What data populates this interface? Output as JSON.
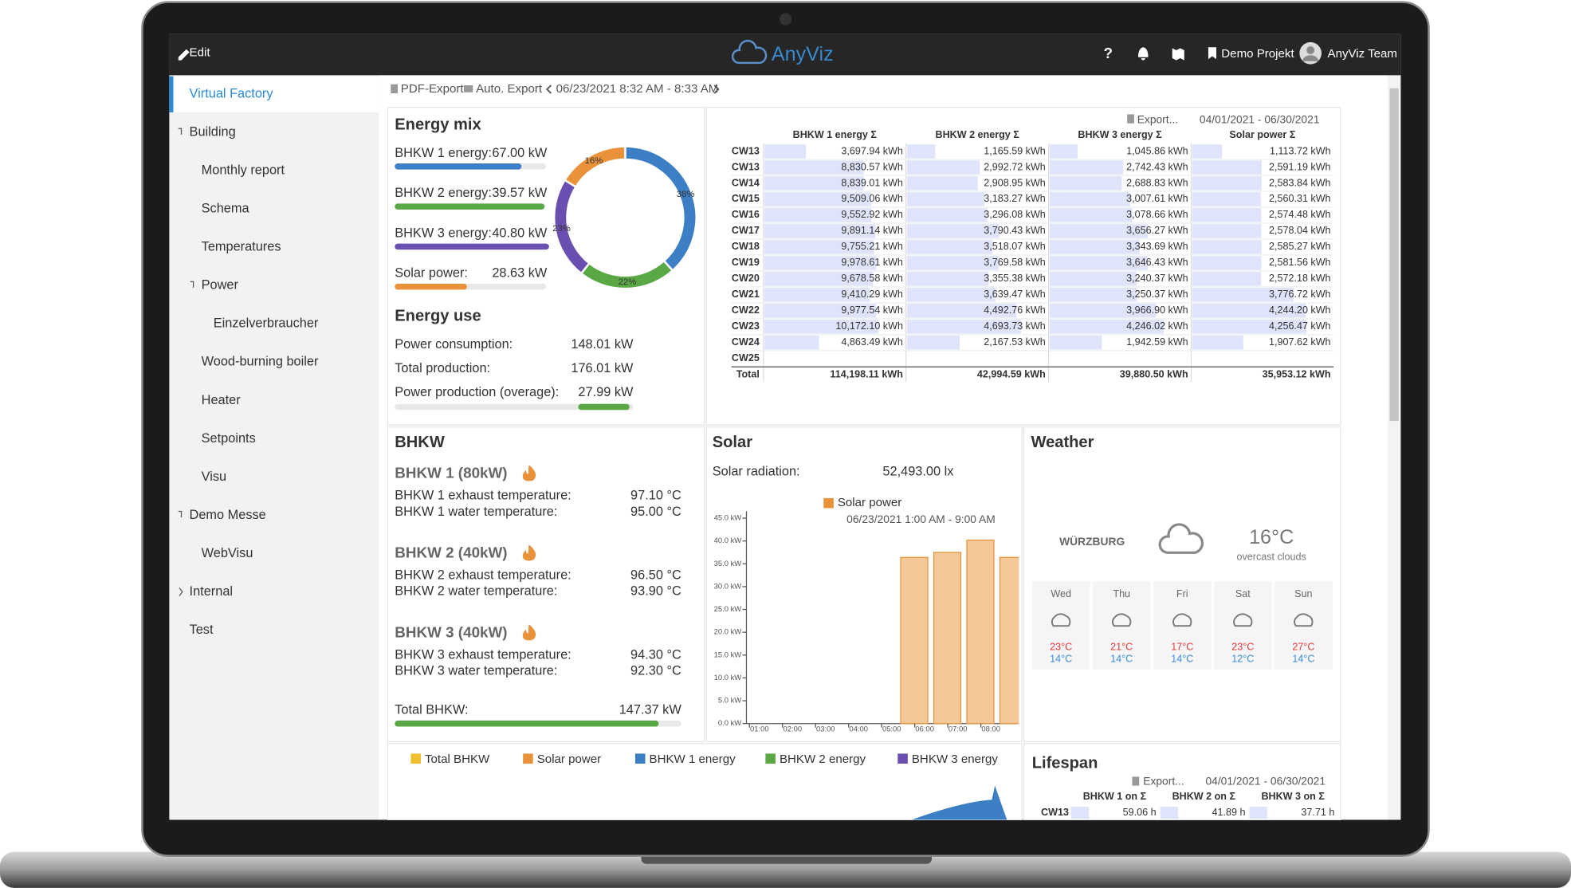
{
  "header": {
    "edit": "Edit",
    "logo": "AnyViz",
    "help": "?",
    "project": "Demo Projekt",
    "user": "AnyViz Team"
  },
  "sidebar": {
    "items": [
      {
        "label": "Virtual Factory"
      },
      {
        "label": "Building",
        "children": [
          {
            "label": "Monthly report"
          },
          {
            "label": "Schema"
          },
          {
            "label": "Temperatures"
          },
          {
            "label": "Power",
            "children": [
              {
                "label": "Einzelverbraucher"
              }
            ]
          },
          {
            "label": "Wood-burning boiler"
          },
          {
            "label": "Heater"
          },
          {
            "label": "Setpoints"
          },
          {
            "label": "Visu"
          }
        ]
      },
      {
        "label": "Demo Messe",
        "children": [
          {
            "label": "WebVisu"
          }
        ]
      },
      {
        "label": "Internal",
        "collapsed": true
      },
      {
        "label": "Test"
      }
    ]
  },
  "toolbar": {
    "pdf": "PDF-Export",
    "auto": "Auto. Export",
    "range": "06/23/2021 8:32 AM - 8:33 AM"
  },
  "energy_mix": {
    "title": "Energy mix",
    "items": [
      {
        "label": "BHKW 1 energy:",
        "value": 67.0,
        "value_label": "67.00 kW",
        "range": [
          0,
          80
        ],
        "color": "#3d7fc4",
        "share": 38,
        "share_label": "38%"
      },
      {
        "label": "BHKW 2 energy:",
        "value": 39.57,
        "value_label": "39.57 kW",
        "range": [
          0,
          40
        ],
        "color": "#5aa845",
        "share": 22,
        "share_label": "22%"
      },
      {
        "label": "BHKW 3 energy:",
        "value": 40.8,
        "value_label": "40.80 kW",
        "range": [
          0,
          40
        ],
        "color": "#6a4fb0",
        "share": 23,
        "share_label": "23%"
      },
      {
        "label": "Solar power:",
        "value": 28.63,
        "value_label": "28.63 kW",
        "range": [
          0,
          60
        ],
        "color": "#e9923a",
        "share": 16,
        "share_label": "16%"
      }
    ]
  },
  "energy_use": {
    "title": "Energy use",
    "rows": [
      {
        "label": "Power consumption:",
        "value_label": "148.01 kW"
      },
      {
        "label": "Total production:",
        "value_label": "176.01 kW"
      }
    ],
    "overage": {
      "label": "Power production (overage):",
      "value": 27.99,
      "value_label": "27.99 kW",
      "range": [
        -100,
        30
      ],
      "color": "#5aa845"
    }
  },
  "table": {
    "export": "Export...",
    "range": "04/01/2021 - 06/30/2021",
    "rows": [
      "CW13",
      "CW13",
      "CW14",
      "CW15",
      "CW16",
      "CW17",
      "CW18",
      "CW19",
      "CW20",
      "CW21",
      "CW22",
      "CW23",
      "CW24",
      "CW25"
    ],
    "total_label": "Total",
    "columns": [
      {
        "header": "BHKW 1 energy Σ",
        "values": [
          3697.94,
          8830.57,
          8839.01,
          9509.06,
          9552.92,
          9891.14,
          9755.21,
          9978.61,
          9678.58,
          9410.29,
          9977.54,
          10172.1,
          4863.49,
          null
        ],
        "value_labels": [
          "3,697.94 kWh",
          "8,830.57 kWh",
          "8,839.01 kWh",
          "9,509.06 kWh",
          "9,552.92 kWh",
          "9,891.14 kWh",
          "9,755.21 kWh",
          "9,978.61 kWh",
          "9,678.58 kWh",
          "9,410.29 kWh",
          "9,977.54 kWh",
          "10,172.10 kWh",
          "4,863.49 kWh",
          null
        ],
        "total": 114198.11,
        "total_label": "114,198.11 kWh"
      },
      {
        "header": "BHKW 2 energy Σ",
        "values": [
          1165.59,
          2992.72,
          2908.95,
          3183.27,
          3296.08,
          3790.43,
          3518.07,
          3769.58,
          3355.38,
          3639.47,
          4492.76,
          4693.73,
          2167.53,
          null
        ],
        "value_labels": [
          "1,165.59 kWh",
          "2,992.72 kWh",
          "2,908.95 kWh",
          "3,183.27 kWh",
          "3,296.08 kWh",
          "3,790.43 kWh",
          "3,518.07 kWh",
          "3,769.58 kWh",
          "3,355.38 kWh",
          "3,639.47 kWh",
          "4,492.76 kWh",
          "4,693.73 kWh",
          "2,167.53 kWh",
          null
        ],
        "total": 42994.59,
        "total_label": "42,994.59 kWh"
      },
      {
        "header": "BHKW 3 energy Σ",
        "values": [
          1045.86,
          2742.43,
          2688.83,
          3007.61,
          3078.66,
          3656.27,
          3343.69,
          3646.43,
          3240.37,
          3250.37,
          3966.9,
          4246.02,
          1942.59,
          null
        ],
        "value_labels": [
          "1,045.86 kWh",
          "2,742.43 kWh",
          "2,688.83 kWh",
          "3,007.61 kWh",
          "3,078.66 kWh",
          "3,656.27 kWh",
          "3,343.69 kWh",
          "3,646.43 kWh",
          "3,240.37 kWh",
          "3,250.37 kWh",
          "3,966.90 kWh",
          "4,246.02 kWh",
          "1,942.59 kWh",
          null
        ],
        "total": 39880.5,
        "total_label": "39,880.50 kWh"
      },
      {
        "header": "Solar power Σ",
        "values": [
          1113.72,
          2591.19,
          2583.84,
          2560.31,
          2574.48,
          2578.04,
          2585.27,
          2581.56,
          2572.18,
          3776.72,
          4244.2,
          4256.47,
          1907.62,
          null
        ],
        "value_labels": [
          "1,113.72 kWh",
          "2,591.19 kWh",
          "2,583.84 kWh",
          "2,560.31 kWh",
          "2,574.48 kWh",
          "2,578.04 kWh",
          "2,585.27 kWh",
          "2,581.56 kWh",
          "2,572.18 kWh",
          "3,776.72 kWh",
          "4,244.20 kWh",
          "4,256.47 kWh",
          "1,907.62 kWh",
          null
        ],
        "total": 35953.12,
        "total_label": "35,953.12 kWh"
      }
    ]
  },
  "bhkw": {
    "title": "BHKW",
    "units": [
      {
        "title": "BHKW 1 (80kW)",
        "rows": [
          {
            "label": "BHKW 1 exhaust temperature:",
            "value": "97.10 °C"
          },
          {
            "label": "BHKW 1 water temperature:",
            "value": "95.00 °C"
          }
        ]
      },
      {
        "title": "BHKW 2 (40kW)",
        "rows": [
          {
            "label": "BHKW 2 exhaust temperature:",
            "value": "96.50 °C"
          },
          {
            "label": "BHKW 2 water temperature:",
            "value": "93.90 °C"
          }
        ]
      },
      {
        "title": "BHKW 3 (40kW)",
        "rows": [
          {
            "label": "BHKW 3 exhaust temperature:",
            "value": "94.30 °C"
          },
          {
            "label": "BHKW 3 water temperature:",
            "value": "92.30 °C"
          }
        ]
      }
    ],
    "total": {
      "label": "Total BHKW:",
      "value": 147.37,
      "value_label": "147.37 kW",
      "range": [
        0,
        160
      ],
      "color": "#5aa845"
    }
  },
  "solar": {
    "title": "Solar",
    "radiation_label": "Solar radiation:",
    "radiation_value": "52,493.00 lx",
    "chart": {
      "type": "bar",
      "subtitle": "06/23/2021 1:00 AM - 9:00 AM",
      "categories": [
        "01:00",
        "02:00",
        "03:00",
        "04:00",
        "05:00",
        "06:00",
        "07:00",
        "08:00"
      ],
      "series": [
        {
          "name": "Solar power",
          "color": "#e9923a",
          "values": [
            null,
            null,
            null,
            null,
            36.4,
            37.5,
            40.2,
            36.4
          ]
        }
      ],
      "ylim": [
        0,
        45
      ],
      "yticks": [
        {
          "value": 0,
          "label": "0.0 kW"
        },
        {
          "value": 5,
          "label": "5.0 kW"
        },
        {
          "value": 10,
          "label": "10.0 kW"
        },
        {
          "value": 15,
          "label": "15.0 kW"
        },
        {
          "value": 20,
          "label": "20.0 kW"
        },
        {
          "value": 25,
          "label": "25.0 kW"
        },
        {
          "value": 30,
          "label": "30.0 kW"
        },
        {
          "value": 35,
          "label": "35.0 kW"
        },
        {
          "value": 40,
          "label": "40.0 kW"
        },
        {
          "value": 45,
          "label": "45.0 kW"
        }
      ]
    }
  },
  "weather": {
    "title": "Weather",
    "city": "WÜRZBURG",
    "temp": "16°C",
    "desc": "overcast clouds",
    "days": [
      {
        "day": "Wed",
        "high": "23°C",
        "low": "14°C"
      },
      {
        "day": "Thu",
        "high": "21°C",
        "low": "14°C"
      },
      {
        "day": "Fri",
        "high": "17°C",
        "low": "14°C"
      },
      {
        "day": "Sat",
        "high": "23°C",
        "low": "12°C"
      },
      {
        "day": "Sun",
        "high": "27°C",
        "low": "14°C"
      }
    ]
  },
  "legend": [
    {
      "name": "Total BHKW",
      "color": "#f0c030"
    },
    {
      "name": "Solar power",
      "color": "#e9923a"
    },
    {
      "name": "BHKW 1 energy",
      "color": "#3d7fc4"
    },
    {
      "name": "BHKW 2 energy",
      "color": "#5aa845"
    },
    {
      "name": "BHKW 3 energy",
      "color": "#6a4fb0"
    }
  ],
  "lifespan": {
    "title": "Lifespan",
    "export": "Export...",
    "range": "04/01/2021 - 06/30/2021",
    "rows": [
      "CW13"
    ],
    "columns": [
      {
        "header": "BHKW 1 on Σ",
        "values": [
          59.06
        ],
        "value_labels": [
          "59.06 h"
        ]
      },
      {
        "header": "BHKW 2 on Σ",
        "values": [
          41.89
        ],
        "value_labels": [
          "41.89 h"
        ]
      },
      {
        "header": "BHKW 3 on Σ",
        "values": [
          37.71
        ],
        "value_labels": [
          "37.71 h"
        ]
      }
    ]
  }
}
